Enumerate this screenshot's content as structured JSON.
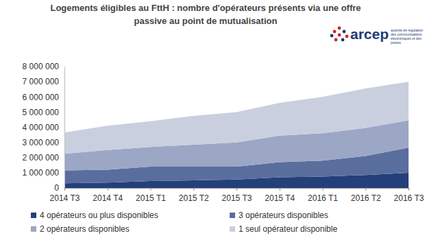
{
  "chart_data": {
    "type": "area",
    "stacked": true,
    "title": "Logements éligibles au FttH : nombre d'opérateurs présents via une offre passive au point de mutualisation",
    "annotations": [
      "arcep",
      "autorité de régulation des communications électroniques et des postes"
    ],
    "categories": [
      "2014 T3",
      "2014 T4",
      "2015 T1",
      "2015 T2",
      "2015 T3",
      "2015 T4",
      "2016 T1",
      "2016 T2",
      "2016 T3"
    ],
    "series": [
      {
        "name": "4 opérateurs ou plus disponibles",
        "color": "#23407a",
        "values": [
          300000,
          350000,
          450000,
          500000,
          550000,
          700000,
          750000,
          850000,
          1000000
        ]
      },
      {
        "name": "3 opérateurs disponibles",
        "color": "#5a6e9e",
        "values": [
          850000,
          850000,
          950000,
          900000,
          850000,
          1000000,
          1050000,
          1250000,
          1650000
        ]
      },
      {
        "name": "2 opérateurs disponibles",
        "color": "#9ba7c5",
        "values": [
          1100000,
          1300000,
          1300000,
          1450000,
          1600000,
          1750000,
          1800000,
          1850000,
          1800000
        ]
      },
      {
        "name": "1 seul opérateur disponible",
        "color": "#c9cfdf",
        "values": [
          1400000,
          1600000,
          1700000,
          1900000,
          2000000,
          2150000,
          2400000,
          2600000,
          2550000
        ]
      }
    ],
    "ylim": [
      0,
      8000000
    ],
    "yticks": [
      0,
      {
        "value": 1000000,
        "label": "1 000 000"
      },
      {
        "value": 2000000,
        "label": "2 000 000"
      },
      {
        "value": 3000000,
        "label": "3 000 000"
      },
      {
        "value": 4000000,
        "label": "4 000 000"
      },
      {
        "value": 5000000,
        "label": "5 000 000"
      },
      {
        "value": 6000000,
        "label": "6 000 000"
      },
      {
        "value": 7000000,
        "label": "7 000 000"
      },
      {
        "value": 8000000,
        "label": "8 000 000"
      }
    ],
    "grid": false,
    "legend": "bottom"
  }
}
